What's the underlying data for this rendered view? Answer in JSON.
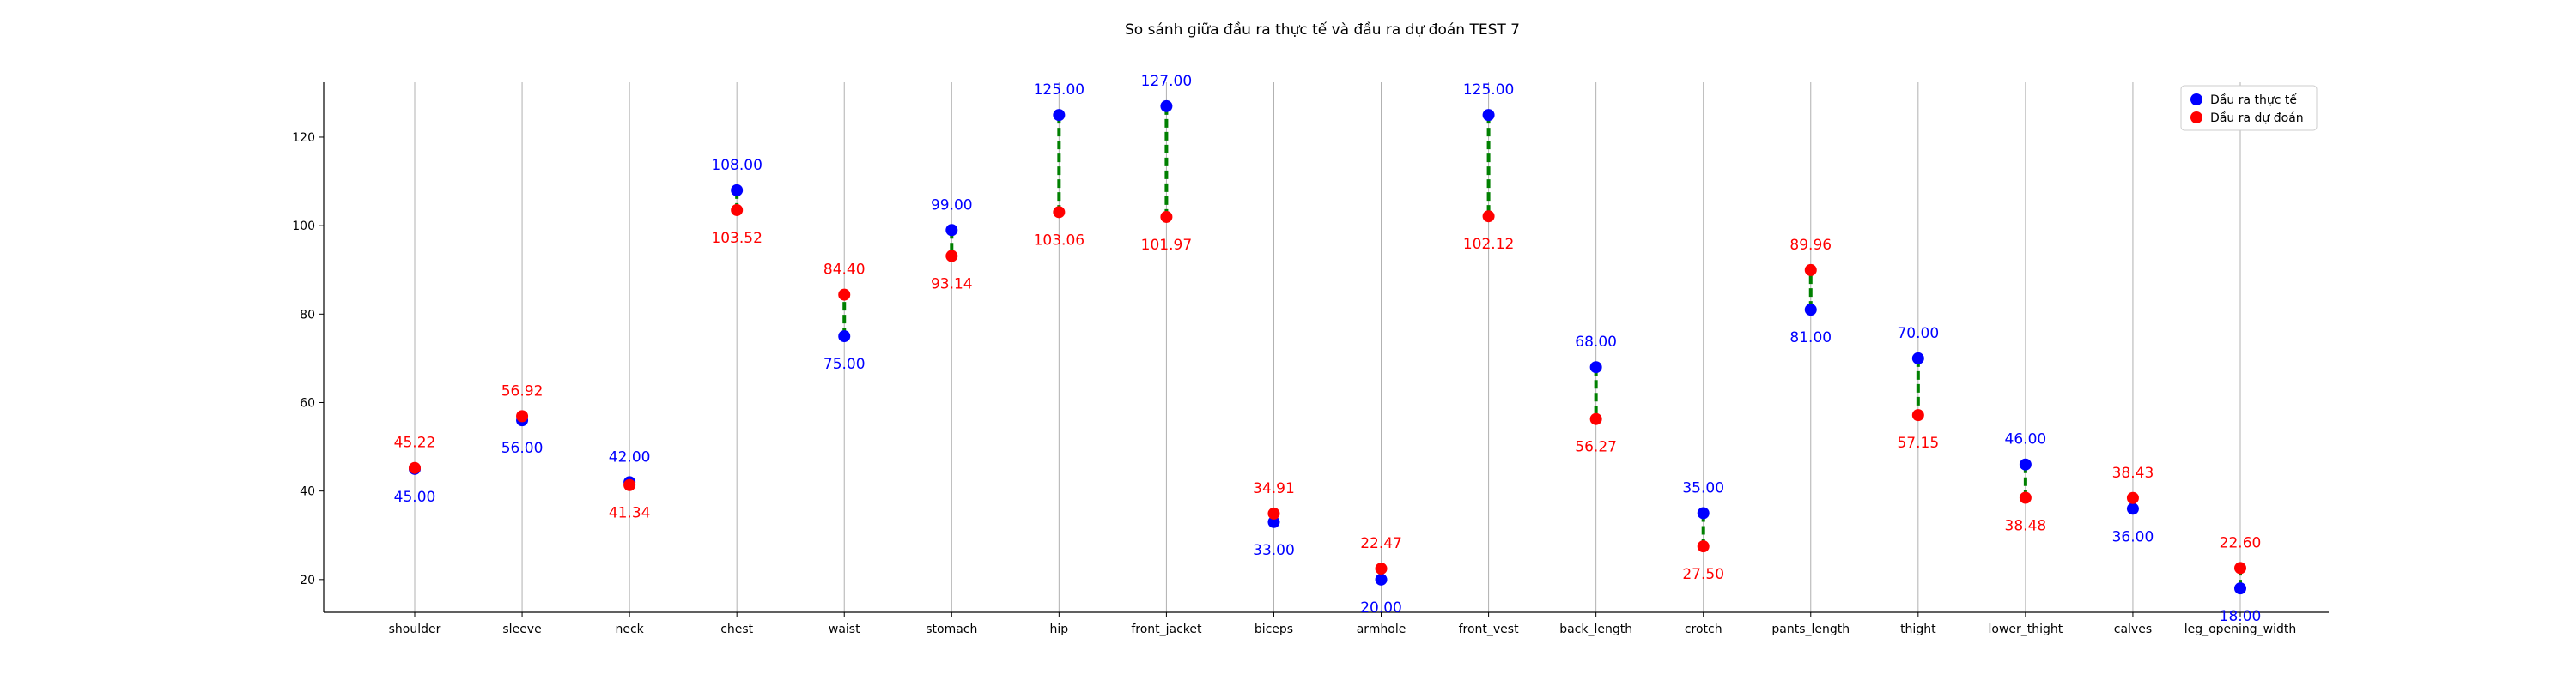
{
  "chart_data": {
    "type": "scatter",
    "title": "So sánh giữa đầu ra thực tế và đầu ra dự đoán TEST 7",
    "xlabel": "",
    "ylabel": "",
    "categories": [
      "shoulder",
      "sleeve",
      "neck",
      "chest",
      "waist",
      "stomach",
      "hip",
      "front_jacket",
      "biceps",
      "armhole",
      "front_vest",
      "back_length",
      "crotch",
      "pants_length",
      "thight",
      "lower_thight",
      "calves",
      "leg_opening_width"
    ],
    "series": [
      {
        "name": "Đầu ra thực tế",
        "color": "#0000ff",
        "values": [
          45.0,
          56.0,
          42.0,
          108.0,
          75.0,
          99.0,
          125.0,
          127.0,
          33.0,
          20.0,
          125.0,
          68.0,
          35.0,
          81.0,
          70.0,
          46.0,
          36.0,
          18.0
        ],
        "labels": [
          "45.00",
          "56.00",
          "42.00",
          "108.00",
          "75.00",
          "99.00",
          "125.00",
          "127.00",
          "33.00",
          "20.00",
          "125.00",
          "68.00",
          "35.00",
          "81.00",
          "70.00",
          "46.00",
          "36.00",
          "18.00"
        ]
      },
      {
        "name": "Đầu ra dự đoán",
        "color": "#ff0000",
        "values": [
          45.22,
          56.92,
          41.34,
          103.52,
          84.4,
          93.14,
          103.06,
          101.97,
          34.91,
          22.47,
          102.12,
          56.27,
          27.5,
          89.96,
          57.15,
          38.48,
          38.43,
          22.6
        ],
        "labels": [
          "45.22",
          "56.92",
          "41.34",
          "103.52",
          "84.40",
          "93.14",
          "103.06",
          "101.97",
          "34.91",
          "22.47",
          "102.12",
          "56.27",
          "27.50",
          "89.96",
          "57.15",
          "38.48",
          "38.43",
          "22.60"
        ]
      }
    ],
    "connector_color": "#008000",
    "yticks": [
      20,
      40,
      60,
      80,
      100,
      120
    ],
    "ylim": [
      12.6,
      132.4
    ],
    "grid": "vertical",
    "legend_position": "top-right"
  }
}
